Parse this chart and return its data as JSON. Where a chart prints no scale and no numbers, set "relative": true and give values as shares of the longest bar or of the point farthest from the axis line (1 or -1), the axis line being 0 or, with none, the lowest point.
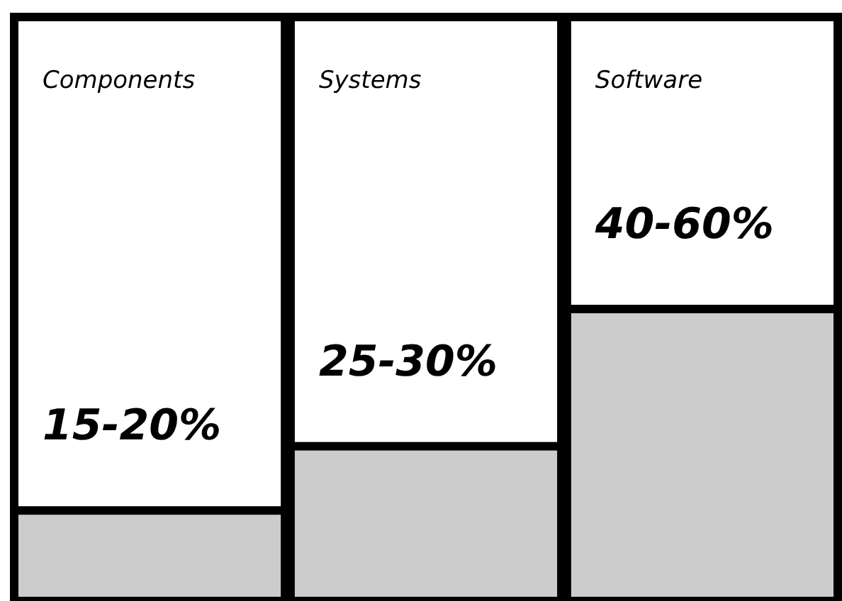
{
  "chart_data": {
    "type": "bar",
    "relative": true,
    "categories": [
      "Components",
      "Systems",
      "Software"
    ],
    "values": [
      0.31,
      0.53,
      1
    ],
    "annotations": [
      "15-20%",
      "25-30%",
      "40-60%"
    ],
    "color": "#cccccc"
  }
}
